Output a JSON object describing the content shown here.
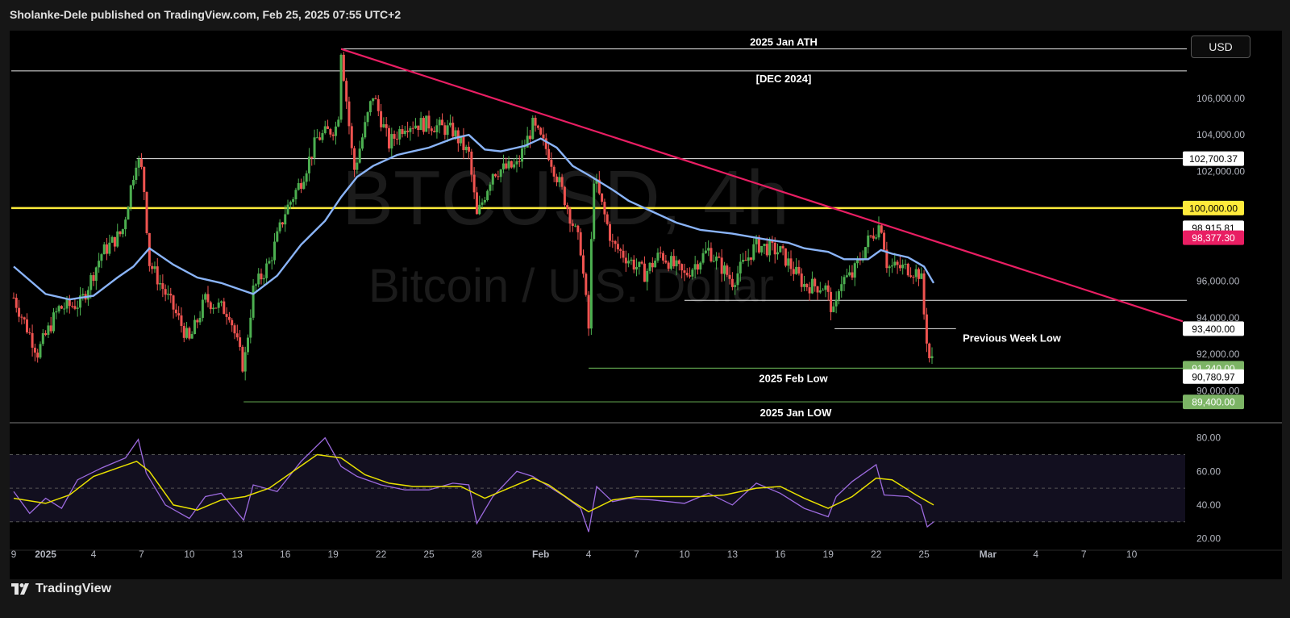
{
  "header": {
    "published_text": "Sholanke-Dele published on TradingView.com, Feb 25, 2025 07:55 UTC+2"
  },
  "toolbar": {
    "currency_label": "USD"
  },
  "footer": {
    "brand": "TradingView"
  },
  "watermark": {
    "symbol": "BTCUSD, 4h",
    "name": "Bitcoin / U.S. Dollar"
  },
  "colors": {
    "background": "#000000",
    "candle_up": "#4caf50",
    "candle_down": "#ef5350",
    "ma_line": "#8ab4f8",
    "trendline": "#e91e63",
    "yellow_level": "#ffeb3b",
    "rsi_line": "#9c6ade",
    "rsi_signal": "#e8e000",
    "green_level": "#5b9a4a"
  },
  "chart_data": [
    {
      "type": "candlestick",
      "title": "BTCUSD, 4h",
      "ylim": [
        88300,
        109700
      ],
      "yticks": [
        "106,000.00",
        "104,000.00",
        "102,000.00",
        "96,000.00",
        "94,000.00",
        "92,000.00",
        "90,000.00"
      ],
      "xticks": [
        {
          "label": "9",
          "x": -1.0
        },
        {
          "label": "2025",
          "x": 1.0
        },
        {
          "label": "4",
          "x": 4.0
        },
        {
          "label": "7",
          "x": 7.0
        },
        {
          "label": "10",
          "x": 10.0
        },
        {
          "label": "13",
          "x": 13.0
        },
        {
          "label": "16",
          "x": 16.0
        },
        {
          "label": "19",
          "x": 19.0
        },
        {
          "label": "22",
          "x": 22.0
        },
        {
          "label": "25",
          "x": 25.0
        },
        {
          "label": "28",
          "x": 28.0
        },
        {
          "label": "Feb",
          "x": 32.0
        },
        {
          "label": "4",
          "x": 35.0
        },
        {
          "label": "7",
          "x": 38.0
        },
        {
          "label": "10",
          "x": 41.0
        },
        {
          "label": "13",
          "x": 44.0
        },
        {
          "label": "16",
          "x": 47.0
        },
        {
          "label": "19",
          "x": 50.0
        },
        {
          "label": "22",
          "x": 53.0
        },
        {
          "label": "25",
          "x": 56.0
        },
        {
          "label": "Mar",
          "x": 60.0
        },
        {
          "label": "4",
          "x": 63.0
        },
        {
          "label": "7",
          "x": 66.0
        },
        {
          "label": "10",
          "x": 69.0
        }
      ],
      "xlim": [
        -1.15,
        72.2
      ],
      "close_path": [
        [
          -1.0,
          95100
        ],
        [
          0.5,
          92100
        ],
        [
          1.8,
          94500
        ],
        [
          3.2,
          94800
        ],
        [
          4.5,
          97500
        ],
        [
          5.8,
          98700
        ],
        [
          6.7,
          102800
        ],
        [
          7.1,
          101800
        ],
        [
          7.5,
          97000
        ],
        [
          9.0,
          94500
        ],
        [
          10.0,
          92700
        ],
        [
          11.0,
          95000
        ],
        [
          12.5,
          94300
        ],
        [
          13.4,
          91200
        ],
        [
          14.0,
          95500
        ],
        [
          15.0,
          97000
        ],
        [
          16.0,
          99800
        ],
        [
          17.0,
          101500
        ],
        [
          18.0,
          103800
        ],
        [
          19.3,
          104500
        ],
        [
          19.5,
          108700
        ],
        [
          20.3,
          102000
        ],
        [
          21.5,
          106200
        ],
        [
          22.5,
          103500
        ],
        [
          23.5,
          104600
        ],
        [
          25.0,
          104600
        ],
        [
          26.5,
          104200
        ],
        [
          27.5,
          102900
        ],
        [
          28.0,
          99500
        ],
        [
          29.0,
          102000
        ],
        [
          30.5,
          102300
        ],
        [
          31.5,
          104500
        ],
        [
          32.5,
          103000
        ],
        [
          33.5,
          100500
        ],
        [
          34.5,
          97800
        ],
        [
          35.0,
          93400
        ],
        [
          35.3,
          101800
        ],
        [
          36.5,
          98000
        ],
        [
          37.5,
          97200
        ],
        [
          38.5,
          96400
        ],
        [
          39.5,
          97500
        ],
        [
          41.0,
          96300
        ],
        [
          42.5,
          97700
        ],
        [
          44.0,
          96000
        ],
        [
          45.5,
          98000
        ],
        [
          47.0,
          97600
        ],
        [
          48.5,
          95800
        ],
        [
          49.8,
          95700
        ],
        [
          50.4,
          94000
        ],
        [
          50.7,
          96000
        ],
        [
          51.5,
          96300
        ],
        [
          52.5,
          98200
        ],
        [
          53.3,
          99200
        ],
        [
          53.7,
          96800
        ],
        [
          55.0,
          96700
        ],
        [
          55.8,
          96400
        ],
        [
          56.0,
          94200
        ],
        [
          56.2,
          92600
        ],
        [
          56.4,
          91400
        ],
        [
          56.6,
          91900
        ]
      ],
      "moving_average_path": [
        [
          -1.0,
          96800
        ],
        [
          1.0,
          95300
        ],
        [
          2.5,
          95000
        ],
        [
          4.0,
          95200
        ],
        [
          5.5,
          96200
        ],
        [
          6.5,
          96800
        ],
        [
          7.5,
          97800
        ],
        [
          9.0,
          96900
        ],
        [
          10.5,
          96200
        ],
        [
          12.0,
          95900
        ],
        [
          13.0,
          95600
        ],
        [
          14.0,
          95300
        ],
        [
          15.5,
          96300
        ],
        [
          17.0,
          98000
        ],
        [
          18.5,
          99300
        ],
        [
          19.5,
          100600
        ],
        [
          20.5,
          101700
        ],
        [
          21.5,
          102300
        ],
        [
          23.0,
          102900
        ],
        [
          25.0,
          103300
        ],
        [
          26.5,
          103800
        ],
        [
          27.5,
          104000
        ],
        [
          28.5,
          103200
        ],
        [
          29.5,
          103100
        ],
        [
          31.0,
          103400
        ],
        [
          32.0,
          103800
        ],
        [
          33.0,
          103300
        ],
        [
          34.0,
          102300
        ],
        [
          35.0,
          101800
        ],
        [
          36.5,
          101000
        ],
        [
          37.5,
          100400
        ],
        [
          39.0,
          99800
        ],
        [
          40.5,
          99200
        ],
        [
          42.0,
          98800
        ],
        [
          44.0,
          98600
        ],
        [
          46.0,
          98300
        ],
        [
          47.5,
          98100
        ],
        [
          48.5,
          97800
        ],
        [
          50.0,
          97600
        ],
        [
          51.0,
          97200
        ],
        [
          52.5,
          97200
        ],
        [
          53.3,
          97700
        ],
        [
          54.0,
          97500
        ],
        [
          55.0,
          97300
        ],
        [
          56.0,
          96800
        ],
        [
          56.6,
          95900
        ]
      ],
      "horizontal_levels": [
        {
          "value": 108700,
          "x_start": 19.5,
          "label": "2025 Jan ATH",
          "style": "white"
        },
        {
          "value": 107500,
          "x_start": -1.15,
          "label": "[DEC 2024]",
          "style": "white"
        },
        {
          "value": 102700.37,
          "x_start": 6.7,
          "price_tag": "102,700.37",
          "style": "white"
        },
        {
          "value": 100000,
          "x_start": -1.15,
          "price_tag": "100,000.00",
          "style": "yellow"
        },
        {
          "value": 94950,
          "x_start": 41.0,
          "style": "white"
        },
        {
          "value": 93400,
          "x_start": 50.4,
          "x_end": 58.0,
          "price_tag": "93,400.00",
          "label": "Previous Week Low",
          "style": "white"
        },
        {
          "value": 91240,
          "x_start": 35.0,
          "price_tag": "91,240.00",
          "label": "2025 Feb Low",
          "style": "green"
        },
        {
          "value": 89400,
          "x_start": 13.4,
          "price_tag": "89,400.00",
          "label": "2025 Jan LOW",
          "style": "green"
        }
      ],
      "trendline": [
        [
          19.5,
          108700
        ],
        [
          72.2,
          93800
        ]
      ],
      "price_tags": [
        {
          "value": 98915.81,
          "label": "98,915.81",
          "bg": "#ffffff",
          "fg": "#000000"
        },
        {
          "value": 98377.3,
          "label": "98,377.30",
          "bg": "#e91e63",
          "fg": "#ffffff"
        },
        {
          "value": 90780.97,
          "label": "90,780.97",
          "bg": "#ffffff",
          "fg": "#000000"
        }
      ]
    },
    {
      "type": "line",
      "title": "RSI",
      "ylim": [
        15,
        88
      ],
      "yticks": [
        "80.00",
        "60.00",
        "40.00",
        "20.00"
      ],
      "band": [
        30,
        70
      ],
      "midline": 50,
      "rsi_path": [
        [
          -1.0,
          48
        ],
        [
          0.0,
          35
        ],
        [
          1.0,
          44
        ],
        [
          2.0,
          38
        ],
        [
          3.0,
          55
        ],
        [
          4.5,
          62
        ],
        [
          6.0,
          68
        ],
        [
          6.8,
          79
        ],
        [
          7.3,
          59
        ],
        [
          8.5,
          40
        ],
        [
          10.0,
          32
        ],
        [
          11.0,
          45
        ],
        [
          12.0,
          47
        ],
        [
          13.4,
          31
        ],
        [
          14.0,
          52
        ],
        [
          15.5,
          48
        ],
        [
          17.0,
          66
        ],
        [
          18.5,
          80
        ],
        [
          19.5,
          63
        ],
        [
          20.5,
          57
        ],
        [
          22.0,
          52
        ],
        [
          23.5,
          49
        ],
        [
          25.0,
          49
        ],
        [
          26.5,
          53
        ],
        [
          27.5,
          52
        ],
        [
          28.0,
          29
        ],
        [
          29.0,
          45
        ],
        [
          30.5,
          60
        ],
        [
          31.5,
          57
        ],
        [
          32.5,
          51
        ],
        [
          33.5,
          45
        ],
        [
          34.5,
          38
        ],
        [
          35.0,
          24
        ],
        [
          35.5,
          51
        ],
        [
          36.5,
          42
        ],
        [
          37.5,
          44
        ],
        [
          39.0,
          43
        ],
        [
          41.0,
          41
        ],
        [
          42.5,
          47
        ],
        [
          44.0,
          40
        ],
        [
          45.5,
          53
        ],
        [
          47.0,
          47
        ],
        [
          48.5,
          38
        ],
        [
          50.0,
          33
        ],
        [
          50.5,
          45
        ],
        [
          51.5,
          54
        ],
        [
          53.0,
          64
        ],
        [
          53.5,
          46
        ],
        [
          55.0,
          45
        ],
        [
          55.8,
          40
        ],
        [
          56.2,
          27
        ],
        [
          56.6,
          30
        ]
      ],
      "signal_path": [
        [
          -1.0,
          44
        ],
        [
          1.0,
          41
        ],
        [
          2.5,
          46
        ],
        [
          4.0,
          57
        ],
        [
          5.5,
          62
        ],
        [
          6.7,
          66
        ],
        [
          7.5,
          60
        ],
        [
          9.0,
          40
        ],
        [
          10.5,
          37
        ],
        [
          12.0,
          43
        ],
        [
          13.5,
          45
        ],
        [
          15.0,
          50
        ],
        [
          16.5,
          60
        ],
        [
          18.0,
          70
        ],
        [
          19.5,
          68
        ],
        [
          21.0,
          58
        ],
        [
          22.5,
          53
        ],
        [
          24.0,
          51
        ],
        [
          25.5,
          51
        ],
        [
          27.0,
          51
        ],
        [
          28.5,
          44
        ],
        [
          30.0,
          50
        ],
        [
          31.5,
          56
        ],
        [
          32.5,
          52
        ],
        [
          34.0,
          42
        ],
        [
          35.0,
          36
        ],
        [
          36.5,
          43
        ],
        [
          38.0,
          45
        ],
        [
          40.0,
          45
        ],
        [
          42.0,
          45
        ],
        [
          43.5,
          46
        ],
        [
          45.5,
          50
        ],
        [
          47.0,
          51
        ],
        [
          48.5,
          44
        ],
        [
          50.0,
          38
        ],
        [
          51.5,
          45
        ],
        [
          53.0,
          56
        ],
        [
          54.0,
          55
        ],
        [
          55.5,
          46
        ],
        [
          56.6,
          40
        ]
      ]
    }
  ]
}
